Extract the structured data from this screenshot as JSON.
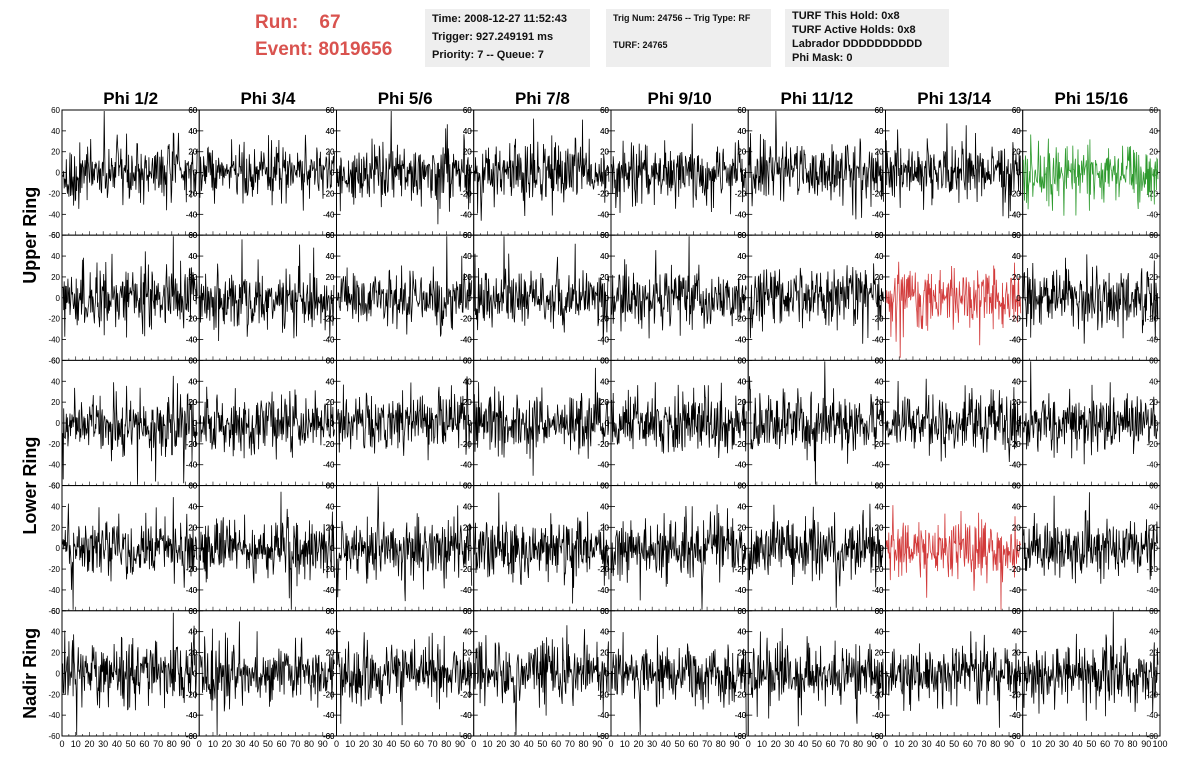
{
  "header": {
    "run_text": "Run:    67",
    "event_text": "Event: 8019656",
    "time_text": "Time: 2008-12-27 11:52:43",
    "trigger_text": "Trigger: 927.249191 ms",
    "priority_text": "Priority: 7 -- Queue: 7",
    "trig_num_text": "Trig Num: 24756 -- Trig Type: RF",
    "turf_text": "TURF: 24765",
    "turf_hold_text": "TURF This Hold: 0x8",
    "turf_active_text": "TURF Active Holds: 0x8",
    "labrador_text": "Labrador DDDDDDDDDD",
    "phi_mask_text": "Phi Mask: 0",
    "accent_color": "#d9534f"
  },
  "chart_data": {
    "type": "line",
    "title": "",
    "columns": [
      "Phi 1/2",
      "Phi 3/4",
      "Phi 5/6",
      "Phi 7/8",
      "Phi 9/10",
      "Phi 11/12",
      "Phi 13/14",
      "Phi 15/16"
    ],
    "rows": [
      "Upper Ring",
      "Upper Ring",
      "Lower Ring",
      "Lower Ring",
      "Nadir Ring"
    ],
    "row_labels": [
      {
        "label": "Upper Ring",
        "span": [
          0,
          1
        ]
      },
      {
        "label": "Lower Ring",
        "span": [
          2,
          3
        ]
      },
      {
        "label": "Nadir Ring",
        "span": [
          4,
          4
        ]
      }
    ],
    "xlim": [
      0,
      100
    ],
    "ylim": [
      -60,
      60
    ],
    "x_ticks": [
      "0",
      "10",
      "20",
      "30",
      "40",
      "50",
      "60",
      "70",
      "80",
      "90",
      "100"
    ],
    "y_ticks": [
      "60",
      "40",
      "20",
      "0",
      "-20",
      "-40",
      "-60"
    ],
    "default_trace_color": "#000000",
    "trace_amplitude_rms": 12,
    "highlighted_traces": [
      {
        "row": 0,
        "col": 7,
        "color": "#2e9a2e"
      },
      {
        "row": 1,
        "col": 6,
        "color": "#d23b3b"
      },
      {
        "row": 3,
        "col": 6,
        "color": "#d23b3b"
      }
    ]
  }
}
